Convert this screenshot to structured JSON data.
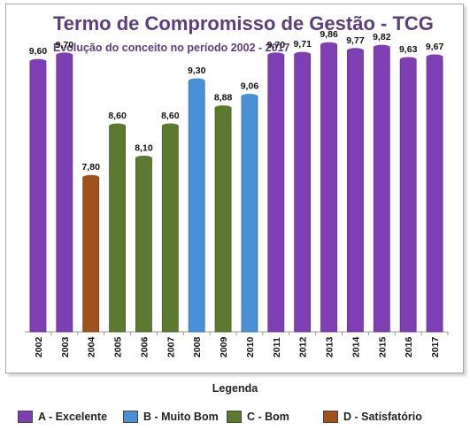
{
  "chart_data": {
    "type": "bar",
    "title": "Termo de Compromisso de Gestão - TCG",
    "subtitle": "Evolução do conceito no período 2002 - 2017",
    "categories": [
      "2002",
      "2003",
      "2004",
      "2005",
      "2006",
      "2007",
      "2008",
      "2009",
      "2010",
      "2011",
      "2012",
      "2013",
      "2014",
      "2015",
      "2016",
      "2017"
    ],
    "values": [
      9.6,
      9.7,
      7.8,
      8.6,
      8.1,
      8.6,
      9.3,
      8.88,
      9.06,
      9.7,
      9.71,
      9.86,
      9.77,
      9.82,
      9.63,
      9.67
    ],
    "value_labels": [
      "9,60",
      "9,70",
      "7,80",
      "8,60",
      "8,10",
      "8,60",
      "9,30",
      "8,88",
      "9,06",
      "9,70",
      "9,71",
      "9,86",
      "9,77",
      "9,82",
      "9,63",
      "9,67"
    ],
    "bar_concepts": [
      "A",
      "A",
      "D",
      "C",
      "C",
      "C",
      "B",
      "C",
      "B",
      "A",
      "A",
      "A",
      "A",
      "A",
      "A",
      "A"
    ],
    "ylim": [
      5.4,
      10.0
    ],
    "grid": false,
    "legend_position": "bottom",
    "legend": {
      "title": "Legenda",
      "entries": [
        {
          "key": "A",
          "label": "A - Excelente",
          "color": "#7e3fb5"
        },
        {
          "key": "B",
          "label": "B - Muito Bom",
          "color": "#4a90d9"
        },
        {
          "key": "C",
          "label": "C - Bom",
          "color": "#5c7a2f"
        },
        {
          "key": "D",
          "label": "D - Satisfatório",
          "color": "#a0521a"
        }
      ]
    }
  }
}
